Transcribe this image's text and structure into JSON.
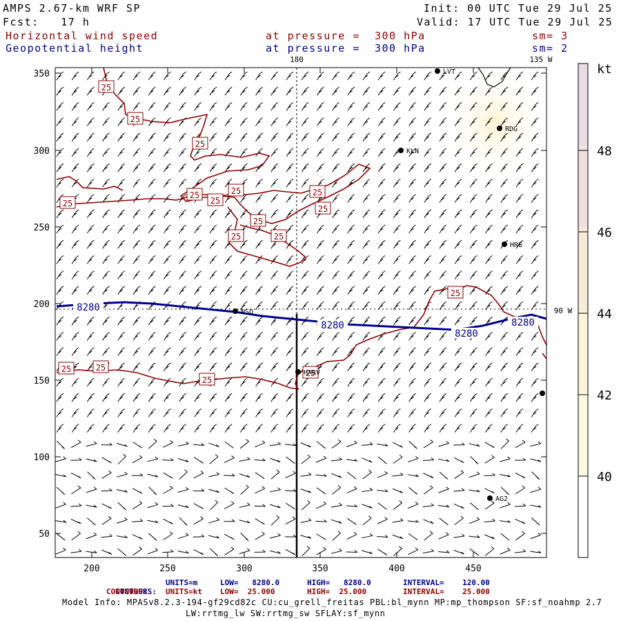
{
  "header": {
    "model": "AMPS 2.67-km WRF SP",
    "init": "Init: 00 UTC Tue 29 Jul 25",
    "fcst": "Fcst:   17 h",
    "valid": "Valid: 17 UTC Tue 29 Jul 25",
    "field1": "Horizontal wind speed",
    "field1_level": "at pressure =  300 hPa",
    "field1_sm": "sm= 3",
    "field2": "Geopotential height",
    "field2_level": "at pressure =  300 hPa",
    "field2_sm": "sm= 2"
  },
  "map": {
    "x_ticks": [
      "200",
      "250",
      "300",
      "350",
      "400",
      "450"
    ],
    "y_ticks": [
      "350",
      "300",
      "250",
      "200",
      "150",
      "100",
      "50"
    ],
    "meridian_180": "180",
    "meridian_135w": "135 W",
    "meridian_90w": "90 W",
    "height_label": "8280",
    "speed_label": "25",
    "stations": [
      {
        "label": "LVT"
      },
      {
        "label": "RDG"
      },
      {
        "label": "KLN"
      },
      {
        "label": "HRG"
      },
      {
        "label": "NSO"
      },
      {
        "label": "HARV"
      },
      {
        "label": "AG2"
      }
    ],
    "colors": {
      "speed_contour": "#8b0000",
      "height_contour": "#00008b",
      "background": "#ffffff"
    }
  },
  "colorbar": {
    "unit": "kt",
    "ticks": [
      "48",
      "46",
      "44",
      "42",
      "40"
    ],
    "colors": [
      "#ffffff",
      "#fff9e0",
      "#fdf3d6",
      "#f7ead8",
      "#f0e0dc",
      "#eadbe3"
    ]
  },
  "footer": {
    "c1_label": "CONTOURS:",
    "c1_units": "UNITS=m",
    "c1_low": "LOW=   8280.0",
    "c1_high": "HIGH=   8280.0",
    "c1_interval": "INTERVAL=    120.00",
    "c2_label": "CONTOURS:",
    "c2_units": "UNITS=kt",
    "c2_low": "LOW=  25.000",
    "c2_high": "HIGH=  25.000",
    "c2_interval": "INTERVAL=    25.000",
    "info1": "Model Info: MPASv8.2.3-194-gf29cd82c CU:cu_grell_freitas PBL:bl_mynn MP:mp_thompson SF:sf_noahmp 2.7",
    "info2": "LW:rrtmg_lw SW:rrtmg_sw SFLAY:sf_mynn"
  }
}
